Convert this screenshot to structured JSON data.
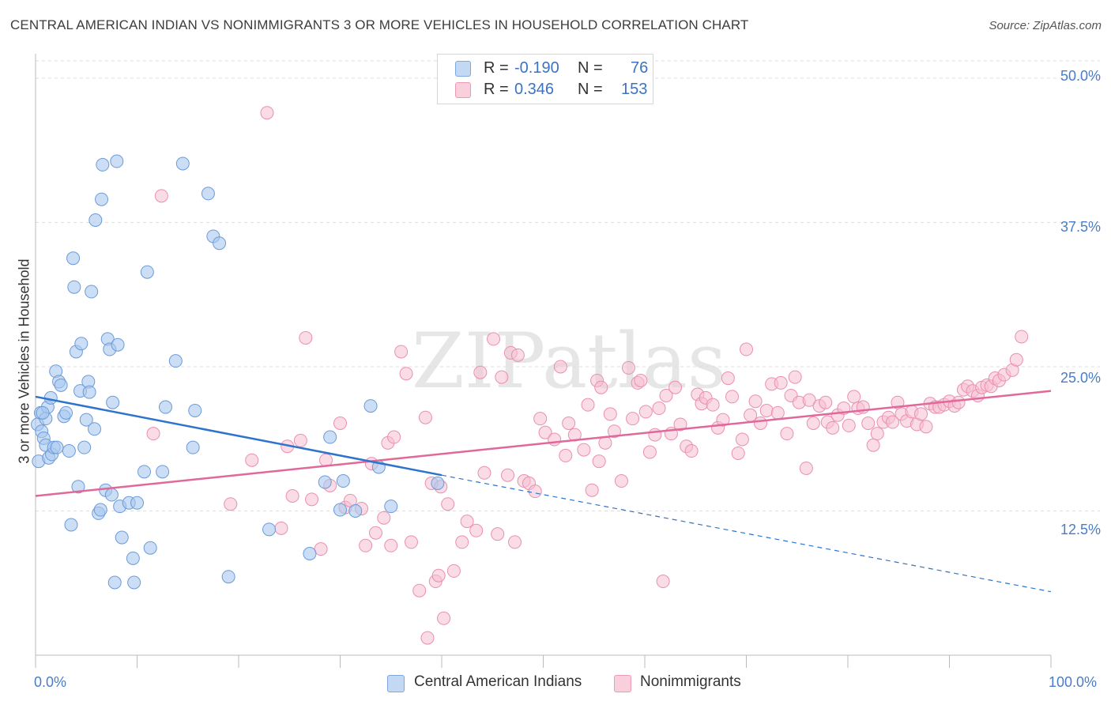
{
  "title": "CENTRAL AMERICAN INDIAN VS NONIMMIGRANTS 3 OR MORE VEHICLES IN HOUSEHOLD CORRELATION CHART",
  "source": "Source: ZipAtlas.com",
  "watermark": "ZIPatlas",
  "legend": {
    "blue": {
      "r_label": "R =",
      "r_value": "-0.190",
      "n_label": "N =",
      "n_value": "76"
    },
    "pink": {
      "r_label": "R =",
      "r_value": "0.346",
      "n_label": "N =",
      "n_value": "153"
    }
  },
  "colors": {
    "blue_fill": "#a9c8ee",
    "blue_stroke": "#6b9bd8",
    "blue_line": "#2e73cc",
    "pink_fill": "#f6bfd1",
    "pink_stroke": "#ea8fb0",
    "pink_line": "#e0699a",
    "tick_text": "#4a7cc7",
    "grid": "#dddddd"
  },
  "chart_data": {
    "type": "scatter",
    "title": "CENTRAL AMERICAN INDIAN VS NONIMMIGRANTS 3 OR MORE VEHICLES IN HOUSEHOLD CORRELATION CHART",
    "xlabel": "",
    "ylabel": "3 or more Vehicles in Household",
    "xlim": [
      0,
      100
    ],
    "ylim": [
      0,
      51.5
    ],
    "x_tick_labels": [
      "0.0%",
      "100.0%"
    ],
    "y_tick_labels": [
      "12.5%",
      "25.0%",
      "37.5%",
      "50.0%"
    ],
    "y_ticks": [
      12.5,
      25.0,
      37.5,
      50.0
    ],
    "grid": true,
    "legend_position": "top-center",
    "series": [
      {
        "name": "Central American Indians",
        "trend": {
          "x0": 0,
          "y0": 22.4,
          "x1": 40,
          "y1": 15.6,
          "dashed_to_x": 100,
          "dashed_to_y": 5.5
        },
        "points": [
          [
            0.2,
            20
          ],
          [
            0.3,
            16.8
          ],
          [
            0.5,
            21
          ],
          [
            0.6,
            19.4
          ],
          [
            0.8,
            18.8
          ],
          [
            1.0,
            18.2
          ],
          [
            1.2,
            21.5
          ],
          [
            1.3,
            17.1
          ],
          [
            1.5,
            22.3
          ],
          [
            1.6,
            17.4
          ],
          [
            1.8,
            18.0
          ],
          [
            2.0,
            24.6
          ],
          [
            2.3,
            23.7
          ],
          [
            2.5,
            23.4
          ],
          [
            2.8,
            20.7
          ],
          [
            3.0,
            21.0
          ],
          [
            3.3,
            17.7
          ],
          [
            3.5,
            11.3
          ],
          [
            3.7,
            34.4
          ],
          [
            3.8,
            31.9
          ],
          [
            4.0,
            26.3
          ],
          [
            4.2,
            14.6
          ],
          [
            4.4,
            22.9
          ],
          [
            4.5,
            27.0
          ],
          [
            4.8,
            18.0
          ],
          [
            5.0,
            20.4
          ],
          [
            5.2,
            23.7
          ],
          [
            5.3,
            22.8
          ],
          [
            5.5,
            31.5
          ],
          [
            5.8,
            19.6
          ],
          [
            5.9,
            37.7
          ],
          [
            6.2,
            12.3
          ],
          [
            6.4,
            12.6
          ],
          [
            6.5,
            39.5
          ],
          [
            6.6,
            42.5
          ],
          [
            6.9,
            14.3
          ],
          [
            7.1,
            27.4
          ],
          [
            7.3,
            26.5
          ],
          [
            7.5,
            13.9
          ],
          [
            7.6,
            21.9
          ],
          [
            7.8,
            6.3
          ],
          [
            8.0,
            42.8
          ],
          [
            8.1,
            26.9
          ],
          [
            8.3,
            12.9
          ],
          [
            8.5,
            10.2
          ],
          [
            9.2,
            13.2
          ],
          [
            9.6,
            8.4
          ],
          [
            9.7,
            6.3
          ],
          [
            10.0,
            13.2
          ],
          [
            10.7,
            15.9
          ],
          [
            11.0,
            33.2
          ],
          [
            11.3,
            9.3
          ],
          [
            12.5,
            15.9
          ],
          [
            12.8,
            21.5
          ],
          [
            13.8,
            25.5
          ],
          [
            14.5,
            42.6
          ],
          [
            15.5,
            18.0
          ],
          [
            15.7,
            21.2
          ],
          [
            17.0,
            40.0
          ],
          [
            17.5,
            36.3
          ],
          [
            18.1,
            35.7
          ],
          [
            19.0,
            6.8
          ],
          [
            23.0,
            10.9
          ],
          [
            27.0,
            8.8
          ],
          [
            29.0,
            18.9
          ],
          [
            28.5,
            15.0
          ],
          [
            30.0,
            12.6
          ],
          [
            30.3,
            15.1
          ],
          [
            31.5,
            12.5
          ],
          [
            33.0,
            21.6
          ],
          [
            33.8,
            16.3
          ],
          [
            35.0,
            12.9
          ],
          [
            39.6,
            14.9
          ],
          [
            1.0,
            20.5
          ],
          [
            0.7,
            21.0
          ],
          [
            2.1,
            18.0
          ]
        ]
      },
      {
        "name": "Nonimmigrants",
        "trend": {
          "x0": 0,
          "y0": 13.8,
          "x1": 100,
          "y1": 22.9
        },
        "points": [
          [
            11.6,
            19.2
          ],
          [
            12.4,
            39.8
          ],
          [
            19.2,
            13.1
          ],
          [
            21.3,
            16.9
          ],
          [
            22.8,
            47.0
          ],
          [
            24.2,
            11.0
          ],
          [
            24.8,
            18.1
          ],
          [
            25.3,
            13.8
          ],
          [
            26.1,
            18.6
          ],
          [
            26.6,
            27.5
          ],
          [
            27.2,
            13.5
          ],
          [
            28.1,
            9.2
          ],
          [
            28.6,
            16.9
          ],
          [
            29.0,
            14.7
          ],
          [
            30.0,
            20.1
          ],
          [
            30.5,
            12.8
          ],
          [
            31.0,
            13.4
          ],
          [
            32.1,
            12.7
          ],
          [
            32.5,
            9.5
          ],
          [
            33.1,
            16.6
          ],
          [
            33.5,
            10.6
          ],
          [
            34.3,
            11.9
          ],
          [
            34.7,
            18.4
          ],
          [
            35.0,
            9.5
          ],
          [
            35.3,
            18.9
          ],
          [
            36.0,
            26.3
          ],
          [
            36.5,
            24.4
          ],
          [
            37.0,
            9.8
          ],
          [
            37.8,
            5.6
          ],
          [
            38.4,
            20.6
          ],
          [
            38.6,
            1.5
          ],
          [
            39.0,
            14.9
          ],
          [
            39.4,
            6.4
          ],
          [
            39.7,
            6.9
          ],
          [
            40.2,
            3.2
          ],
          [
            40.6,
            13.1
          ],
          [
            41.2,
            7.3
          ],
          [
            42.0,
            9.8
          ],
          [
            42.5,
            11.6
          ],
          [
            43.4,
            10.8
          ],
          [
            43.8,
            24.5
          ],
          [
            44.2,
            15.8
          ],
          [
            45.1,
            27.4
          ],
          [
            45.5,
            10.5
          ],
          [
            45.9,
            24.1
          ],
          [
            46.5,
            15.6
          ],
          [
            46.8,
            26.2
          ],
          [
            47.2,
            9.8
          ],
          [
            47.5,
            26.0
          ],
          [
            48.1,
            15.1
          ],
          [
            48.6,
            14.9
          ],
          [
            49.2,
            14.2
          ],
          [
            49.7,
            20.5
          ],
          [
            50.2,
            19.3
          ],
          [
            51.1,
            18.7
          ],
          [
            51.7,
            25.0
          ],
          [
            52.2,
            17.3
          ],
          [
            52.5,
            20.1
          ],
          [
            53.1,
            19.1
          ],
          [
            54.0,
            17.8
          ],
          [
            54.4,
            21.7
          ],
          [
            54.8,
            14.3
          ],
          [
            55.3,
            23.8
          ],
          [
            55.7,
            23.2
          ],
          [
            56.1,
            18.4
          ],
          [
            56.6,
            20.9
          ],
          [
            57.0,
            19.4
          ],
          [
            57.7,
            15.1
          ],
          [
            58.4,
            24.9
          ],
          [
            58.8,
            20.5
          ],
          [
            59.3,
            23.6
          ],
          [
            59.6,
            23.8
          ],
          [
            60.1,
            21.1
          ],
          [
            60.5,
            17.6
          ],
          [
            61.0,
            19.1
          ],
          [
            61.4,
            21.4
          ],
          [
            61.8,
            6.4
          ],
          [
            62.1,
            22.5
          ],
          [
            62.6,
            19.2
          ],
          [
            63.0,
            23.2
          ],
          [
            63.5,
            20.0
          ],
          [
            64.1,
            18.1
          ],
          [
            64.6,
            17.7
          ],
          [
            65.2,
            22.6
          ],
          [
            65.6,
            21.8
          ],
          [
            66.0,
            22.3
          ],
          [
            66.7,
            21.7
          ],
          [
            67.2,
            19.7
          ],
          [
            67.7,
            20.4
          ],
          [
            68.2,
            24.0
          ],
          [
            68.6,
            22.4
          ],
          [
            69.2,
            17.5
          ],
          [
            69.6,
            18.7
          ],
          [
            70.0,
            26.5
          ],
          [
            70.4,
            20.8
          ],
          [
            70.9,
            22.0
          ],
          [
            71.4,
            20.1
          ],
          [
            72.0,
            21.2
          ],
          [
            72.5,
            23.5
          ],
          [
            73.1,
            21.0
          ],
          [
            73.4,
            23.6
          ],
          [
            74.0,
            19.2
          ],
          [
            74.4,
            22.5
          ],
          [
            74.8,
            24.1
          ],
          [
            75.2,
            21.9
          ],
          [
            75.9,
            16.2
          ],
          [
            76.2,
            22.1
          ],
          [
            76.6,
            20.1
          ],
          [
            77.2,
            21.6
          ],
          [
            77.8,
            21.9
          ],
          [
            78.0,
            20.2
          ],
          [
            78.5,
            19.7
          ],
          [
            79.0,
            20.8
          ],
          [
            79.6,
            21.4
          ],
          [
            80.1,
            19.9
          ],
          [
            80.6,
            22.4
          ],
          [
            81.0,
            21.4
          ],
          [
            81.5,
            21.5
          ],
          [
            82.0,
            20.1
          ],
          [
            82.5,
            18.2
          ],
          [
            82.9,
            19.2
          ],
          [
            83.5,
            20.2
          ],
          [
            84.0,
            20.6
          ],
          [
            84.4,
            20.2
          ],
          [
            84.9,
            21.9
          ],
          [
            85.3,
            20.9
          ],
          [
            85.8,
            20.3
          ],
          [
            86.3,
            21.1
          ],
          [
            86.8,
            20.0
          ],
          [
            87.2,
            20.9
          ],
          [
            87.7,
            19.8
          ],
          [
            88.1,
            21.8
          ],
          [
            88.6,
            21.5
          ],
          [
            89.0,
            21.5
          ],
          [
            89.5,
            21.7
          ],
          [
            90.0,
            22.0
          ],
          [
            90.5,
            21.6
          ],
          [
            90.9,
            21.9
          ],
          [
            91.4,
            23.0
          ],
          [
            91.8,
            23.3
          ],
          [
            92.3,
            22.9
          ],
          [
            92.8,
            22.5
          ],
          [
            93.2,
            23.2
          ],
          [
            93.7,
            23.4
          ],
          [
            94.1,
            23.3
          ],
          [
            94.5,
            24.0
          ],
          [
            94.9,
            23.8
          ],
          [
            95.4,
            24.3
          ],
          [
            96.2,
            24.7
          ],
          [
            96.6,
            25.6
          ],
          [
            97.1,
            27.6
          ],
          [
            55.5,
            16.8
          ],
          [
            39.9,
            14.6
          ]
        ]
      }
    ],
    "bottom_legend": [
      "Central American Indians",
      "Nonimmigrants"
    ]
  }
}
